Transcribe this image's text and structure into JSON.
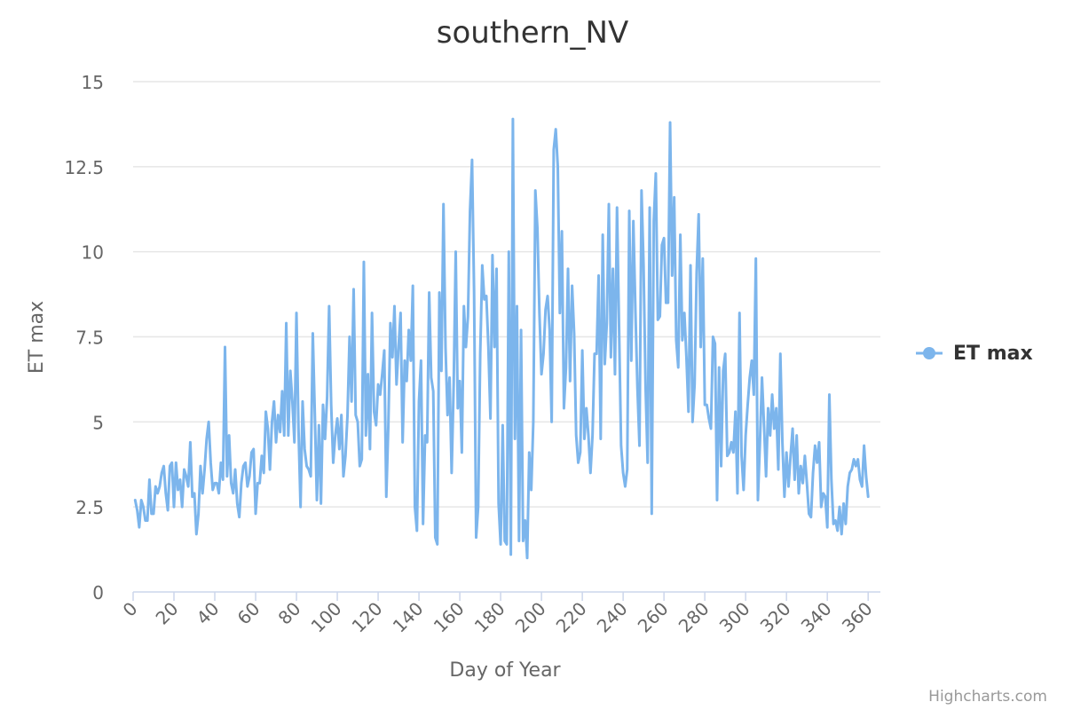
{
  "chart_data": {
    "type": "line",
    "title": "southern_NV",
    "xlabel": "Day of Year",
    "ylabel": "ET max",
    "xlim": [
      0,
      366
    ],
    "ylim": [
      0,
      15
    ],
    "x_ticks": [
      0,
      20,
      40,
      60,
      80,
      100,
      120,
      140,
      160,
      180,
      200,
      220,
      240,
      260,
      280,
      300,
      320,
      340,
      360
    ],
    "y_ticks": [
      "0",
      "2.5",
      "5",
      "7.5",
      "10",
      "12.5",
      "15"
    ],
    "grid": true,
    "legend_position": "right",
    "series": [
      {
        "name": "ET max",
        "color": "#7cb5ec",
        "x_start": 1,
        "x_step": 1,
        "values": [
          2.7,
          2.4,
          1.9,
          2.7,
          2.5,
          2.1,
          2.1,
          3.3,
          2.3,
          2.3,
          3.1,
          2.9,
          3.1,
          3.5,
          3.7,
          2.9,
          2.4,
          3.7,
          3.8,
          2.5,
          3.8,
          3.0,
          3.3,
          2.5,
          3.6,
          3.4,
          3.1,
          4.4,
          2.8,
          2.9,
          1.7,
          2.3,
          3.7,
          2.9,
          3.6,
          4.5,
          5.0,
          3.8,
          3.0,
          3.2,
          3.2,
          2.9,
          3.8,
          3.3,
          7.2,
          3.4,
          4.6,
          3.2,
          2.9,
          3.6,
          2.6,
          2.2,
          3.2,
          3.7,
          3.8,
          3.1,
          3.4,
          4.1,
          4.2,
          2.3,
          3.2,
          3.2,
          4.0,
          3.5,
          5.3,
          4.8,
          3.6,
          5.0,
          5.6,
          4.4,
          5.2,
          4.7,
          5.9,
          4.6,
          7.9,
          4.6,
          6.5,
          5.6,
          4.4,
          8.2,
          4.8,
          2.5,
          5.6,
          4.2,
          3.7,
          3.6,
          3.4,
          7.6,
          5.2,
          2.7,
          4.9,
          2.6,
          5.5,
          4.5,
          5.7,
          8.4,
          5.5,
          3.8,
          4.6,
          5.1,
          4.2,
          5.2,
          3.4,
          4.0,
          5.2,
          7.5,
          5.6,
          8.9,
          5.2,
          5.0,
          3.7,
          3.9,
          9.7,
          4.6,
          6.4,
          4.2,
          8.2,
          5.3,
          4.9,
          6.1,
          5.8,
          6.4,
          7.1,
          2.8,
          4.9,
          7.9,
          6.9,
          8.4,
          6.1,
          7.2,
          8.2,
          4.4,
          6.8,
          6.2,
          7.7,
          6.8,
          9.0,
          2.5,
          1.8,
          5.6,
          6.8,
          2.0,
          4.6,
          4.4,
          8.8,
          6.3,
          5.9,
          1.6,
          1.4,
          8.8,
          6.5,
          11.4,
          7.2,
          5.2,
          6.3,
          3.5,
          6.1,
          10.0,
          5.4,
          6.2,
          4.1,
          8.4,
          7.2,
          8.1,
          11.2,
          12.7,
          8.8,
          1.6,
          2.5,
          7.0,
          9.6,
          8.6,
          8.7,
          7.2,
          5.1,
          9.9,
          7.2,
          9.5,
          2.6,
          1.4,
          4.9,
          1.5,
          1.4,
          10.0,
          1.1,
          13.9,
          4.5,
          8.4,
          1.5,
          7.7,
          1.5,
          2.1,
          1.0,
          4.1,
          3.0,
          5.0,
          11.8,
          10.7,
          8.2,
          6.4,
          7.0,
          8.3,
          8.7,
          7.7,
          5.0,
          13.0,
          13.6,
          12.5,
          8.2,
          10.6,
          5.4,
          6.6,
          9.5,
          6.2,
          9.0,
          7.6,
          4.6,
          3.8,
          4.1,
          7.1,
          4.5,
          5.4,
          4.6,
          3.5,
          4.6,
          7.0,
          7.0,
          9.3,
          4.5,
          10.5,
          6.7,
          7.9,
          11.4,
          6.9,
          9.5,
          6.4,
          11.3,
          7.8,
          4.3,
          3.5,
          3.1,
          3.6,
          11.2,
          6.8,
          10.9,
          8.3,
          6.0,
          4.3,
          11.8,
          9.6,
          6.0,
          3.8,
          11.3,
          2.3,
          10.9,
          12.3,
          8.0,
          8.1,
          10.2,
          10.4,
          8.5,
          8.5,
          13.8,
          9.3,
          11.6,
          7.4,
          6.6,
          10.5,
          7.4,
          8.2,
          6.9,
          5.3,
          9.6,
          5.0,
          6.1,
          9.4,
          11.1,
          7.2,
          9.8,
          5.5,
          5.5,
          5.1,
          4.8,
          7.5,
          7.3,
          2.7,
          6.6,
          3.7,
          6.5,
          7.0,
          4.0,
          4.1,
          4.4,
          4.1,
          5.3,
          2.9,
          8.2,
          4.0,
          3.0,
          4.6,
          5.5,
          6.3,
          6.8,
          5.8,
          9.8,
          2.7,
          4.4,
          6.3,
          4.9,
          3.4,
          5.4,
          4.6,
          5.8,
          4.8,
          5.4,
          3.6,
          7.0,
          4.4,
          2.8,
          4.1,
          3.1,
          4.0,
          4.8,
          3.3,
          4.6,
          2.9,
          3.7,
          3.2,
          4.0,
          3.2,
          2.3,
          2.2,
          3.5,
          4.3,
          3.8,
          4.4,
          2.5,
          2.9,
          2.8,
          1.9,
          5.8,
          3.3,
          2.0,
          2.1,
          1.8,
          2.5,
          1.7,
          2.6,
          2.0,
          3.1,
          3.5,
          3.6,
          3.9,
          3.7,
          3.9,
          3.3,
          3.1,
          4.3,
          3.4,
          2.8
        ]
      }
    ]
  },
  "credits": "Highcharts.com"
}
